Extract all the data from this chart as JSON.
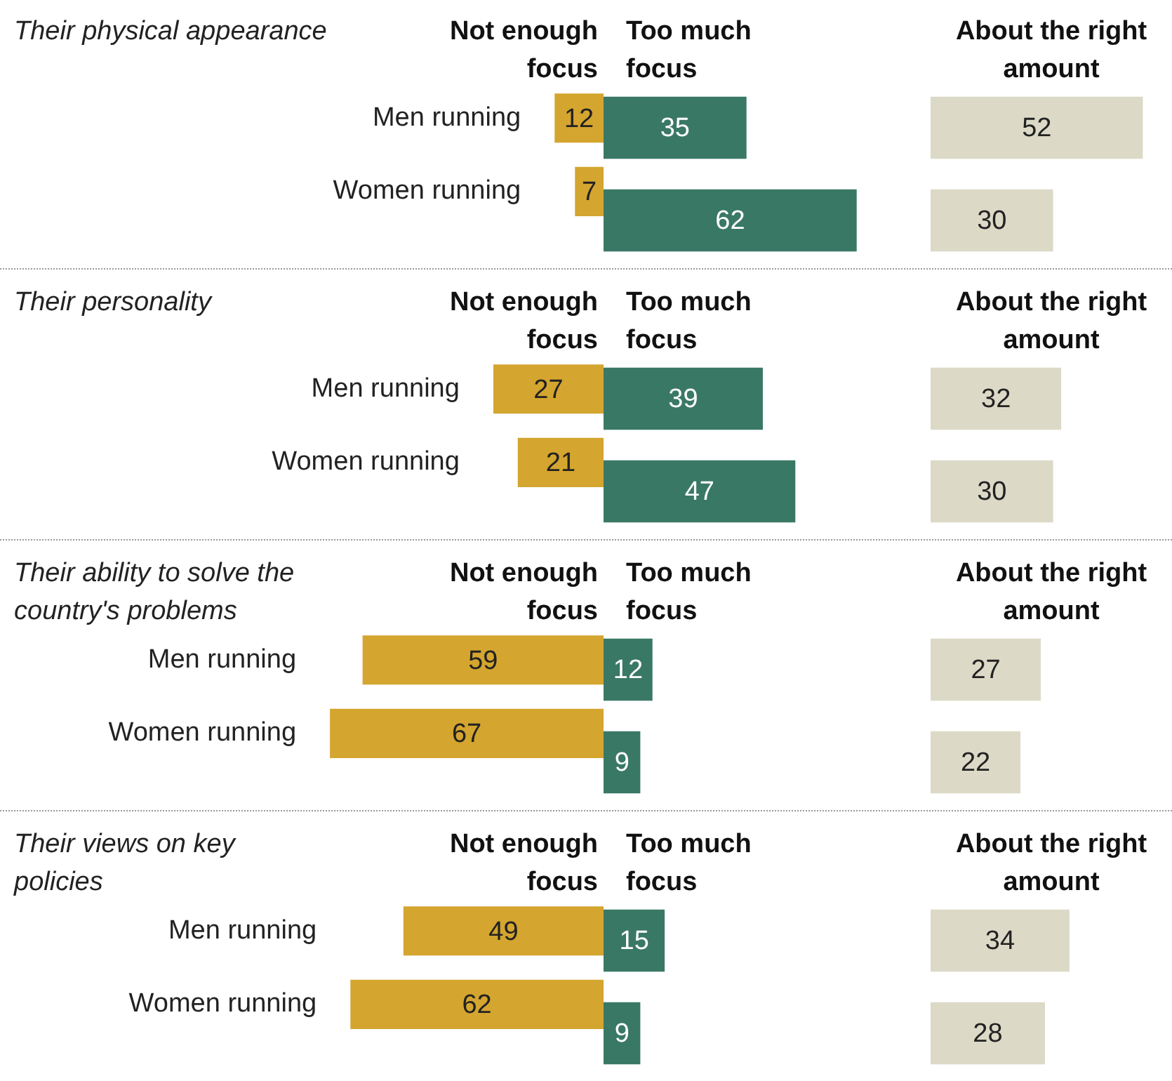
{
  "chart_data": [
    {
      "type": "bar",
      "orientation": "horizontal",
      "title": "Their physical appearance",
      "categories": [
        "Men running",
        "Women running"
      ],
      "series": [
        {
          "name": "Not enough focus",
          "color": "#d4a52f",
          "values": [
            12,
            7
          ]
        }
      ],
      "xlim": [
        12,
        0
      ],
      "tick_labels": "y",
      "data_labels": true,
      "legend": "top"
    },
    {
      "type": "bar",
      "orientation": "horizontal",
      "categories": [
        null,
        null
      ],
      "series": [
        {
          "name": "Too much focus",
          "color": "#3a7866",
          "values": [
            35,
            62
          ]
        }
      ],
      "xlim": [
        0,
        62
      ],
      "tick_labels": false,
      "data_labels": true,
      "legend": "top"
    },
    {
      "type": "bar",
      "orientation": "horizontal",
      "categories": [
        null,
        null
      ],
      "series": [
        {
          "name": "About the right amount",
          "color": "#dcd9c7",
          "values": [
            52,
            30
          ]
        }
      ],
      "xlim": [
        0,
        52
      ],
      "tick_labels": false,
      "data_labels": true,
      "legend": "top"
    },
    {
      "type": "bar",
      "orientation": "horizontal",
      "title": "Their personality",
      "categories": [
        "Men running",
        "Women running"
      ],
      "series": [
        {
          "name": "Not enough focus",
          "color": "#d4a52f",
          "values": [
            27,
            21
          ]
        }
      ],
      "xlim": [
        27,
        0
      ],
      "tick_labels": "y",
      "data_labels": true,
      "legend": "top"
    },
    {
      "type": "bar",
      "orientation": "horizontal",
      "categories": [
        null,
        null
      ],
      "series": [
        {
          "name": "Too much focus",
          "color": "#3a7866",
          "values": [
            39,
            47
          ]
        }
      ],
      "xlim": [
        0,
        47
      ],
      "tick_labels": false,
      "data_labels": true,
      "legend": "top"
    },
    {
      "type": "bar",
      "orientation": "horizontal",
      "categories": [
        null,
        null
      ],
      "series": [
        {
          "name": "About the right amount",
          "color": "#dcd9c7",
          "values": [
            32,
            30
          ]
        }
      ],
      "xlim": [
        0,
        32
      ],
      "tick_labels": false,
      "data_labels": true,
      "legend": "top"
    },
    {
      "type": "bar",
      "orientation": "horizontal",
      "title": "Their ability to solve the country's problems",
      "categories": [
        "Men running",
        "Women running"
      ],
      "series": [
        {
          "name": "Not enough focus",
          "color": "#d4a52f",
          "values": [
            59,
            67
          ]
        }
      ],
      "xlim": [
        67,
        0
      ],
      "tick_labels": "y",
      "data_labels": true,
      "legend": "top"
    },
    {
      "type": "bar",
      "orientation": "horizontal",
      "categories": [
        null,
        null
      ],
      "series": [
        {
          "name": "Too much focus",
          "color": "#3a7866",
          "values": [
            12,
            9
          ]
        }
      ],
      "xlim": [
        0,
        12
      ],
      "tick_labels": false,
      "data_labels": true,
      "legend": "top"
    },
    {
      "type": "bar",
      "orientation": "horizontal",
      "categories": [
        null,
        null
      ],
      "series": [
        {
          "name": "About the right amount",
          "color": "#dcd9c7",
          "values": [
            27,
            22
          ]
        }
      ],
      "xlim": [
        0,
        27
      ],
      "tick_labels": false,
      "data_labels": true,
      "legend": "top"
    },
    {
      "type": "bar",
      "orientation": "horizontal",
      "title": "Their views on key policies",
      "categories": [
        "Men running",
        "Women running"
      ],
      "series": [
        {
          "name": "Not enough focus",
          "color": "#d4a52f",
          "values": [
            49,
            62
          ]
        }
      ],
      "xlim": [
        62,
        0
      ],
      "tick_labels": "y",
      "data_labels": true,
      "legend": "top"
    },
    {
      "type": "bar",
      "orientation": "horizontal",
      "categories": [
        null,
        null
      ],
      "series": [
        {
          "name": "Too much focus",
          "color": "#3a7866",
          "values": [
            15,
            9
          ]
        }
      ],
      "xlim": [
        0,
        15
      ],
      "tick_labels": false,
      "data_labels": true,
      "legend": "top"
    },
    {
      "type": "bar",
      "orientation": "horizontal",
      "categories": [
        null,
        null
      ],
      "series": [
        {
          "name": "About the right amount",
          "color": "#dcd9c7",
          "values": [
            34,
            28
          ]
        }
      ],
      "xlim": [
        0,
        34
      ],
      "tick_labels": false,
      "data_labels": true,
      "legend": "top"
    }
  ]
}
